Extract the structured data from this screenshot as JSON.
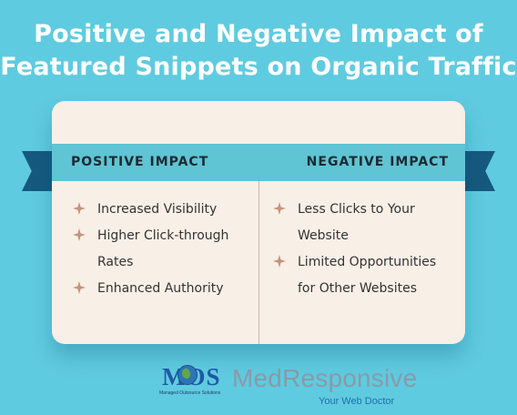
{
  "title": {
    "line1": "Positive and Negative Impact of",
    "line2": "Featured Snippets on Organic Traffic"
  },
  "columns": {
    "positive": {
      "heading": "POSITIVE IMPACT",
      "items": [
        [
          "Increased Visibility"
        ],
        [
          "Higher Click-through",
          "Rates"
        ],
        [
          "Enhanced Authority"
        ]
      ]
    },
    "negative": {
      "heading": "NEGATIVE IMPACT",
      "items": [
        [
          "Less Clicks to Your",
          "Website"
        ],
        [
          "Limited Opportunities",
          "for Other Websites"
        ]
      ]
    }
  },
  "footer": {
    "mos": "MOS",
    "mos_sub": "Managed Outsource Solutions",
    "brand": "MedResponsive",
    "tagline": "Your Web Doctor"
  },
  "colors": {
    "background": "#5fcbe0",
    "card": "#f8efe6",
    "ribbon": "#5fc4d3",
    "ribbon_tail": "#155a7e",
    "bullet": "#c9927b"
  },
  "icons": {
    "bullet": "four-point-star-icon"
  }
}
